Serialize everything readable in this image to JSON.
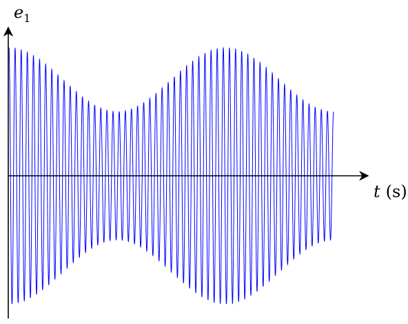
{
  "chart_data": {
    "type": "line",
    "title": "",
    "xlabel": "t (s)",
    "ylabel": "e1",
    "x_label_parts": {
      "var": "t",
      "unit": "(s)"
    },
    "y_label_parts": {
      "var": "e",
      "sub": "1"
    },
    "grid": false,
    "legend": "none",
    "series": [
      {
        "color": "#0000ff",
        "signal": {
          "kind": "beating-sinusoid",
          "carrier_cycles": 53,
          "amplitude_mean": 0.75,
          "amplitude_variation": 0.25,
          "beat_cycles": 1.5,
          "beat_phase": 0.0
        }
      }
    ],
    "xlim": [
      0,
      1
    ],
    "ylim": [
      -1,
      1
    ]
  }
}
